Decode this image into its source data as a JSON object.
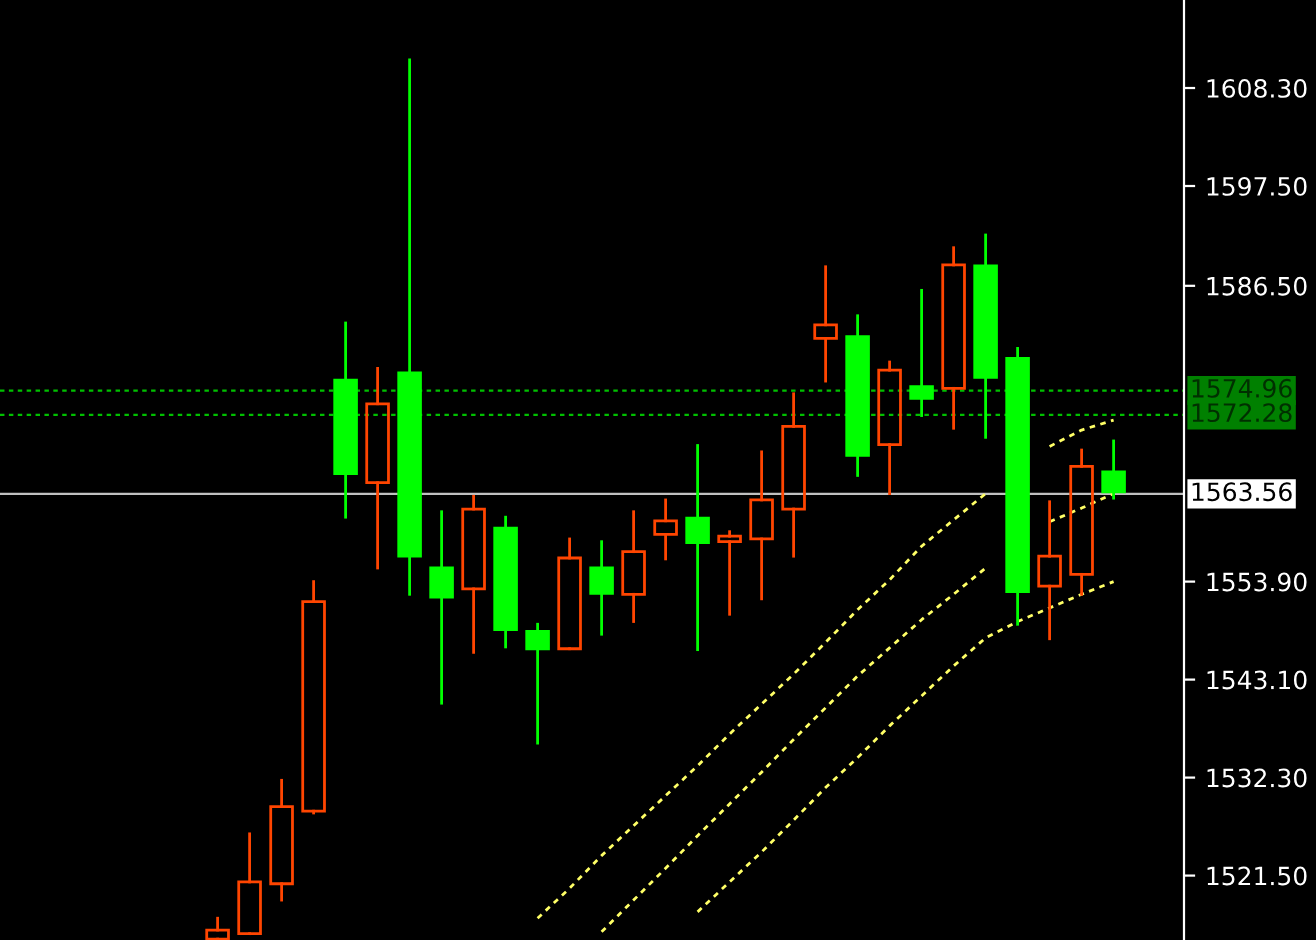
{
  "chart_data": {
    "type": "candlestick",
    "categories": [
      null,
      null,
      null,
      null,
      null,
      null,
      null,
      null,
      null,
      null,
      null,
      null,
      null,
      null,
      null,
      null,
      null,
      null,
      null,
      null,
      null,
      null,
      null,
      null,
      null,
      null,
      null,
      null,
      null
    ],
    "ohlc": [
      [
        1514.5,
        1516.8,
        1514.5,
        1515.5
      ],
      [
        1515.1,
        1526.1,
        1515.1,
        1520.8
      ],
      [
        1520.6,
        1532.0,
        1518.8,
        1529.1
      ],
      [
        1528.6,
        1553.9,
        1528.4,
        1551.7
      ],
      [
        1576.1,
        1582.4,
        1561.0,
        1565.8
      ],
      [
        1564.8,
        1577.4,
        1555.4,
        1573.5
      ],
      [
        1576.9,
        1611.4,
        1552.5,
        1556.7
      ],
      [
        1555.4,
        1561.6,
        1540.5,
        1552.2
      ],
      [
        1553.1,
        1563.3,
        1546.1,
        1561.9
      ],
      [
        1559.8,
        1561.0,
        1546.7,
        1548.6
      ],
      [
        1548.4,
        1549.2,
        1536.1,
        1546.5
      ],
      [
        1546.5,
        1558.6,
        1546.5,
        1556.5
      ],
      [
        1555.4,
        1558.3,
        1548.1,
        1552.6
      ],
      [
        1552.5,
        1561.6,
        1549.5,
        1557.2
      ],
      [
        1559.1,
        1562.9,
        1556.4,
        1560.6
      ],
      [
        1560.9,
        1568.9,
        1546.4,
        1558.2
      ],
      [
        1558.3,
        1559.4,
        1550.3,
        1558.9
      ],
      [
        1558.6,
        1568.2,
        1552.0,
        1562.9
      ],
      [
        1561.9,
        1574.6,
        1556.7,
        1571.0
      ],
      [
        1580.7,
        1588.6,
        1576.0,
        1582.2
      ],
      [
        1580.9,
        1583.2,
        1565.6,
        1567.8
      ],
      [
        1569.0,
        1578.1,
        1563.6,
        1577.2
      ],
      [
        1575.4,
        1586.0,
        1572.2,
        1574.1
      ],
      [
        1575.2,
        1590.7,
        1570.8,
        1588.8
      ],
      [
        1588.7,
        1592.1,
        1569.8,
        1576.4
      ],
      [
        1578.5,
        1579.6,
        1549.2,
        1552.8
      ],
      [
        1553.4,
        1562.7,
        1547.6,
        1556.7
      ],
      [
        1554.7,
        1568.4,
        1552.5,
        1566.6
      ],
      [
        1566.0,
        1569.4,
        1563.1,
        1563.8
      ]
    ],
    "colors": [
      "#ff4500",
      "#ff4500",
      "#ff4500",
      "#ff4500",
      "#00ff00",
      "#ff4500",
      "#00ff00",
      "#00ff00",
      "#ff4500",
      "#00ff00",
      "#00ff00",
      "#ff4500",
      "#00ff00",
      "#ff4500",
      "#ff4500",
      "#00ff00",
      "#ff4500",
      "#ff4500",
      "#ff4500",
      "#ff4500",
      "#00ff00",
      "#ff4500",
      "#00ff00",
      "#ff4500",
      "#00ff00",
      "#00ff00",
      "#ff4500",
      "#ff4500",
      "#00ff00"
    ],
    "series": [
      {
        "type": "line",
        "color": "#ffff66",
        "line_style": "dashed",
        "values": [
          null,
          null,
          null,
          null,
          null,
          null,
          null,
          null,
          null,
          null,
          1516.8,
          1520.1,
          1523.7,
          1527.0,
          1530.3,
          1533.6,
          1537.1,
          1540.4,
          1543.7,
          1547.2,
          1550.8,
          1554.1,
          1557.8,
          1560.7,
          1563.6,
          null,
          1568.8,
          1570.6,
          1571.7
        ]
      },
      {
        "type": "line",
        "color": "#ffff66",
        "line_style": "dashed",
        "values": [
          null,
          null,
          null,
          null,
          null,
          null,
          null,
          null,
          null,
          null,
          null,
          null,
          1515.3,
          1518.8,
          1522.3,
          1525.9,
          1529.4,
          1532.9,
          1536.5,
          1540.0,
          1543.5,
          1546.6,
          1549.7,
          1552.5,
          1555.4,
          null,
          1560.5,
          1562.0,
          1563.6
        ]
      },
      {
        "type": "line",
        "color": "#ffff66",
        "line_style": "dashed",
        "values": [
          null,
          null,
          null,
          null,
          null,
          null,
          null,
          null,
          null,
          null,
          null,
          null,
          null,
          null,
          null,
          1517.5,
          1520.8,
          1524.1,
          1527.6,
          1531.2,
          1534.5,
          1538.0,
          1541.3,
          1544.6,
          1547.7,
          1549.5,
          1551.0,
          1552.5,
          1553.9
        ]
      }
    ],
    "ylim": [
      1514.4,
      1618.0
    ],
    "yticks": [
      {
        "value": 1608.3,
        "label": "1608.30"
      },
      {
        "value": 1597.5,
        "label": "1597.50"
      },
      {
        "value": 1586.5,
        "label": "1586.50"
      },
      {
        "value": 1553.9,
        "label": "1553.90"
      },
      {
        "value": 1543.1,
        "label": "1543.10"
      },
      {
        "value": 1532.3,
        "label": "1532.30"
      },
      {
        "value": 1521.5,
        "label": "1521.50"
      }
    ],
    "ref_lines": [
      {
        "axis": "y",
        "value": 1574.96,
        "label": "1574.96",
        "color": "#00c000",
        "line_style": "dashed"
      },
      {
        "axis": "y",
        "value": 1572.28,
        "label": "1572.28",
        "color": "#00c000",
        "line_style": "dashed"
      },
      {
        "axis": "y",
        "value": 1563.56,
        "label": "1563.56",
        "color": "#c0c0c0",
        "line_style": "solid"
      }
    ],
    "grid": false,
    "legend": false
  }
}
